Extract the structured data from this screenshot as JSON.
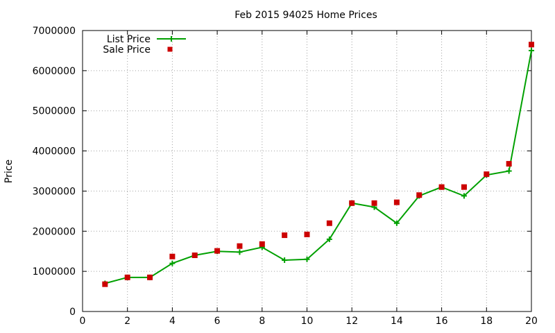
{
  "colors": {
    "list_price": "#00a000",
    "sale_price": "#cc0000",
    "grid": "#a0a0a0"
  },
  "chart_data": {
    "type": "line",
    "title": "Feb 2015 94025 Home Prices",
    "xlabel": "",
    "ylabel": "Price",
    "xlim": [
      0,
      20
    ],
    "ylim": [
      0,
      7000000
    ],
    "x_ticks": [
      0,
      2,
      4,
      6,
      8,
      10,
      12,
      14,
      16,
      18,
      20
    ],
    "x_tick_labels": [
      "0",
      "2",
      "4",
      "6",
      "8",
      "10",
      "12",
      "14",
      "16",
      "18",
      "20"
    ],
    "y_ticks": [
      0,
      1000000,
      2000000,
      3000000,
      4000000,
      5000000,
      6000000,
      7000000
    ],
    "y_tick_labels": [
      "0",
      "1000000",
      "2000000",
      "3000000",
      "4000000",
      "5000000",
      "6000000",
      "7000000"
    ],
    "grid": true,
    "legend_position": "top-left",
    "series": [
      {
        "name": "List Price",
        "style": "line with plus markers",
        "x": [
          1,
          2,
          3,
          4,
          5,
          6,
          7,
          8,
          9,
          10,
          11,
          12,
          13,
          14,
          15,
          16,
          17,
          18,
          19,
          20
        ],
        "values": [
          700000,
          850000,
          850000,
          1200000,
          1400000,
          1500000,
          1480000,
          1600000,
          1280000,
          1300000,
          1800000,
          2700000,
          2600000,
          2200000,
          2880000,
          3100000,
          2880000,
          3400000,
          3500000,
          6500000
        ]
      },
      {
        "name": "Sale Price",
        "style": "square markers",
        "x": [
          1,
          2,
          3,
          4,
          5,
          6,
          7,
          8,
          9,
          10,
          11,
          12,
          13,
          14,
          15,
          16,
          17,
          18,
          19,
          20
        ],
        "values": [
          680000,
          850000,
          850000,
          1370000,
          1400000,
          1510000,
          1630000,
          1680000,
          1900000,
          1920000,
          2200000,
          2700000,
          2700000,
          2720000,
          2900000,
          3100000,
          3100000,
          3420000,
          3680000,
          6650000
        ]
      }
    ]
  }
}
